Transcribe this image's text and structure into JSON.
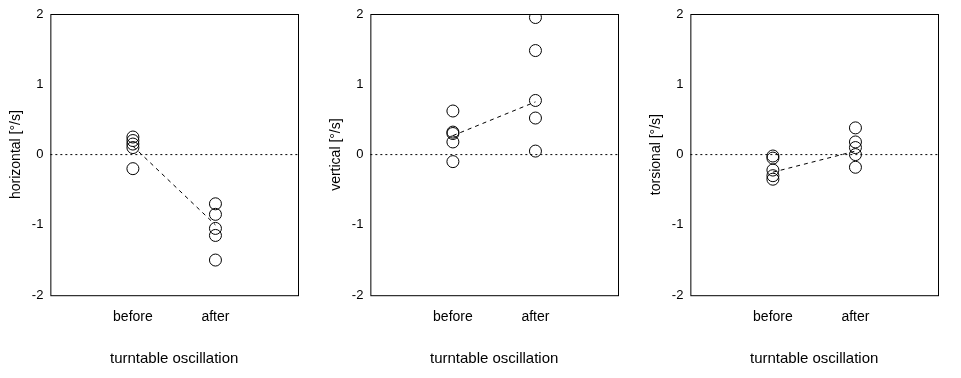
{
  "chart_data": [
    {
      "type": "scatter",
      "y_label": "horizontal [°/s]",
      "x_label": "turntable oscillation",
      "categories": [
        "before",
        "after"
      ],
      "values": [
        [
          0.25,
          0.2,
          0.15,
          0.1,
          -0.2
        ],
        [
          -0.7,
          -0.85,
          -1.05,
          -1.15,
          -1.5
        ]
      ],
      "line_values": [
        0.12,
        -1.0
      ],
      "line_style": "dashed",
      "reference_line": 0,
      "color": "#000000",
      "marker": "circle",
      "ylim": [
        -2,
        2
      ],
      "yticks": [
        -2,
        -1,
        0,
        1,
        2
      ],
      "grid": false
    },
    {
      "type": "scatter",
      "y_label": "vertical [°/s]",
      "x_label": "turntable oscillation",
      "categories": [
        "before",
        "after"
      ],
      "values": [
        [
          0.62,
          0.32,
          0.3,
          0.18,
          -0.1
        ],
        [
          1.95,
          1.48,
          0.77,
          0.52,
          0.05
        ]
      ],
      "line_values": [
        0.27,
        0.75
      ],
      "line_style": "dashed",
      "reference_line": 0,
      "color": "#000000",
      "marker": "circle",
      "ylim": [
        -2,
        2
      ],
      "yticks": [
        -2,
        -1,
        0,
        1,
        2
      ],
      "grid": false
    },
    {
      "type": "scatter",
      "y_label": "torsional [°/s]",
      "x_label": "turntable oscillation",
      "categories": [
        "before",
        "after"
      ],
      "values": [
        [
          -0.02,
          -0.05,
          -0.22,
          -0.3,
          -0.35
        ],
        [
          0.38,
          0.18,
          0.1,
          0.0,
          -0.18
        ]
      ],
      "line_values": [
        -0.25,
        0.05
      ],
      "line_style": "dashed",
      "reference_line": 0,
      "color": "#000000",
      "marker": "circle",
      "ylim": [
        -2,
        2
      ],
      "yticks": [
        -2,
        -1,
        0,
        1,
        2
      ],
      "grid": false
    }
  ]
}
